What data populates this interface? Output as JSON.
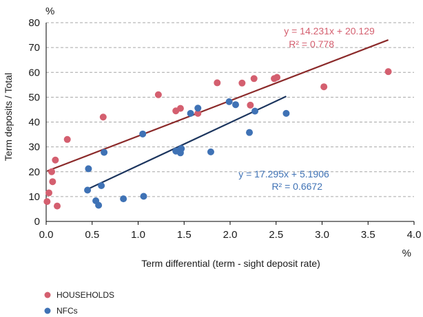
{
  "chart_data": {
    "type": "scatter",
    "xlabel": "Term differential (term - sight deposit rate)",
    "ylabel": "Term deposits / Total",
    "x_unit": "%",
    "y_unit": "%",
    "xlim": [
      0,
      4
    ],
    "ylim": [
      0,
      80
    ],
    "x_ticks": [
      "0.0",
      "0.5",
      "1.0",
      "1.5",
      "2.0",
      "2.5",
      "3.0",
      "3.5",
      "4.0"
    ],
    "y_ticks": [
      "0",
      "10",
      "20",
      "30",
      "40",
      "50",
      "60",
      "70",
      "80"
    ],
    "grid": "horizontal dashed",
    "legend_position": "bottom-left",
    "series": [
      {
        "name": "HOUSEHOLDS",
        "color": "#d45f6f",
        "points": [
          [
            0.01,
            8
          ],
          [
            0.03,
            11.5
          ],
          [
            0.06,
            20
          ],
          [
            0.07,
            16
          ],
          [
            0.1,
            24.7
          ],
          [
            0.12,
            6.2
          ],
          [
            0.23,
            33
          ],
          [
            0.62,
            42
          ],
          [
            1.22,
            51
          ],
          [
            1.41,
            44.5
          ],
          [
            1.46,
            45.5
          ],
          [
            1.65,
            43.5
          ],
          [
            1.86,
            55.8
          ],
          [
            2.13,
            55.7
          ],
          [
            2.22,
            46.8
          ],
          [
            2.26,
            57.5
          ],
          [
            2.48,
            57.5
          ],
          [
            2.51,
            58
          ],
          [
            3.02,
            54.2
          ],
          [
            3.72,
            60.3
          ]
        ],
        "trendline": {
          "equation": "y = 14.231x + 20.129",
          "r2": "R² = 0.778",
          "slope": 14.231,
          "intercept": 20.129,
          "x_range": [
            0.01,
            3.72
          ],
          "line_color": "#8b2a2a"
        }
      },
      {
        "name": "NFCs",
        "color": "#3f72b5",
        "points": [
          [
            0.45,
            12.6
          ],
          [
            0.46,
            21.2
          ],
          [
            0.54,
            8.3
          ],
          [
            0.57,
            6.5
          ],
          [
            0.6,
            14.4
          ],
          [
            0.63,
            27.8
          ],
          [
            0.84,
            9.1
          ],
          [
            1.05,
            35.2
          ],
          [
            1.06,
            10.1
          ],
          [
            1.41,
            28.3
          ],
          [
            1.44,
            28.5
          ],
          [
            1.46,
            27.6
          ],
          [
            1.47,
            29.3
          ],
          [
            1.57,
            43.5
          ],
          [
            1.65,
            45.6
          ],
          [
            1.79,
            28.0
          ],
          [
            1.99,
            48.2
          ],
          [
            2.06,
            47
          ],
          [
            2.21,
            35.8
          ],
          [
            2.27,
            44.4
          ],
          [
            2.61,
            43.5
          ]
        ],
        "trendline": {
          "equation": "y = 17.295x + 5.1906",
          "r2": "R² = 0.6672",
          "slope": 17.295,
          "intercept": 5.1906,
          "x_range": [
            0.45,
            2.61
          ],
          "line_color": "#1c355e"
        }
      }
    ]
  }
}
